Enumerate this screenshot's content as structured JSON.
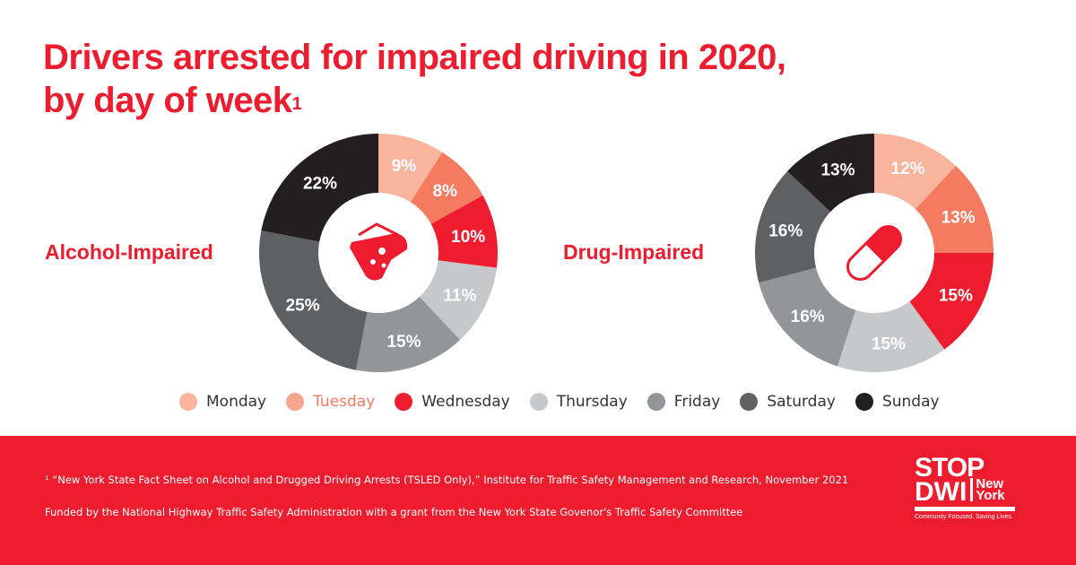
{
  "title_line1": "Drivers arrested for impaired driving in 2020,",
  "title_line2": "by day of week",
  "title_sup": "1",
  "chart_data": [
    {
      "type": "pie",
      "title": "Alcohol-Impaired",
      "categories": [
        "Monday",
        "Tuesday",
        "Wednesday",
        "Thursday",
        "Friday",
        "Saturday",
        "Sunday"
      ],
      "values": [
        9,
        8,
        10,
        11,
        15,
        25,
        22
      ],
      "labels": [
        "9%",
        "8%",
        "10%",
        "11%",
        "15%",
        "25%",
        "22%"
      ],
      "donut": true,
      "icon": "cocktail-glass-icon"
    },
    {
      "type": "pie",
      "title": "Drug-Impaired",
      "categories": [
        "Monday",
        "Tuesday",
        "Wednesday",
        "Thursday",
        "Friday",
        "Saturday",
        "Sunday"
      ],
      "values": [
        12,
        13,
        15,
        15,
        16,
        16,
        13
      ],
      "labels": [
        "12%",
        "13%",
        "15%",
        "15%",
        "16%",
        "16%",
        "13%"
      ],
      "donut": true,
      "icon": "pill-capsule-icon"
    }
  ],
  "colors": [
    "#f9b49e",
    "#f47b60",
    "#ed1c2e",
    "#c7c8ca",
    "#939598",
    "#5f6062",
    "#231f20"
  ],
  "legend": [
    {
      "label": "Monday",
      "color": "#f9b49e"
    },
    {
      "label": "Tuesday",
      "color": "#f5a58f",
      "text_color": "#f47b60"
    },
    {
      "label": "Wednesday",
      "color": "#ed1c2e"
    },
    {
      "label": "Thursday",
      "color": "#c7c8ca"
    },
    {
      "label": "Friday",
      "color": "#939598"
    },
    {
      "label": "Saturday",
      "color": "#5f6062"
    },
    {
      "label": "Sunday",
      "color": "#231f20"
    }
  ],
  "footer": {
    "footnote": "¹ “New York State Fact Sheet on Alcohol and Drugged Driving Arrests (TSLED Only),” Institute for Traffic Safety Management and Research, November 2021",
    "funding": "Funded by the National Highway Traffic Safety Administration with a grant from the New York State Govenor's Traffic Safety Committee",
    "logo": {
      "line1": "STOP",
      "line2": "DWI",
      "ny1": "New",
      "ny2": "York",
      "tagline": "Community Focused. Saving Lives."
    }
  }
}
